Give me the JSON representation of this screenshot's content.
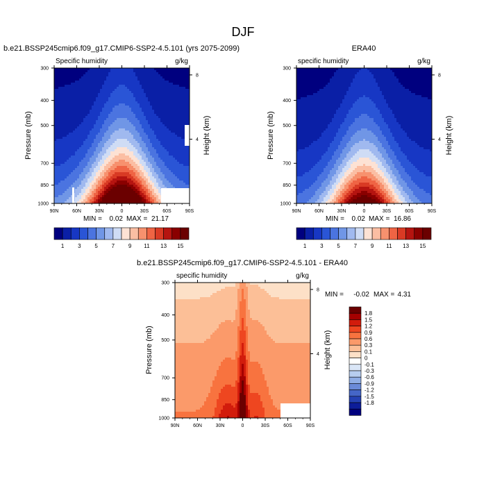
{
  "figure": {
    "title": "DJF"
  },
  "chart_data": [
    {
      "type": "heatmap",
      "title": "b.e21.BSSP245cmip6.f09_g17.CMIP6-SSP2-4.5.101 (yrs 2075-2099)",
      "subtitle_left": "Specific humidity",
      "subtitle_right": "g/kg",
      "xlabel": "",
      "ylabel": "Pressure (mb)",
      "ylabel_right": "Height (km)",
      "x_ticks": [
        "90N",
        "60N",
        "30N",
        "0",
        "30S",
        "60S",
        "90S"
      ],
      "y_ticks": [
        300,
        400,
        500,
        700,
        850,
        1000
      ],
      "y_right_ticks": [
        8,
        4
      ],
      "xlim": [
        90,
        -90
      ],
      "ylim": [
        1000,
        300
      ],
      "stats": {
        "min_label": "MIN =",
        "min": "0.02",
        "max_label": "MAX =",
        "max": "21.17"
      },
      "colorbar_labels": [
        "1",
        "3",
        "5",
        "7",
        "9",
        "11",
        "13",
        "15"
      ],
      "levels": [
        1,
        2,
        3,
        4,
        5,
        6,
        7,
        8,
        9,
        10,
        11,
        12,
        13,
        14,
        15
      ]
    },
    {
      "type": "heatmap",
      "title": "ERA40",
      "subtitle_left": "specific humidity",
      "subtitle_right": "g/kg",
      "xlabel": "",
      "ylabel": "Pressure (mb)",
      "ylabel_right": "Height (km)",
      "x_ticks": [
        "90N",
        "60N",
        "30N",
        "0",
        "30S",
        "60S",
        "90S"
      ],
      "y_ticks": [
        300,
        400,
        500,
        700,
        850,
        1000
      ],
      "y_right_ticks": [
        8,
        4
      ],
      "xlim": [
        90,
        -90
      ],
      "ylim": [
        1000,
        300
      ],
      "stats": {
        "min_label": "MIN =",
        "min": "0.02",
        "max_label": "MAX =",
        "max": "16.86"
      },
      "colorbar_labels": [
        "1",
        "3",
        "5",
        "7",
        "9",
        "11",
        "13",
        "15"
      ],
      "levels": [
        1,
        2,
        3,
        4,
        5,
        6,
        7,
        8,
        9,
        10,
        11,
        12,
        13,
        14,
        15
      ]
    },
    {
      "type": "heatmap",
      "title": "b.e21.BSSP245cmip6.f09_g17.CMIP6-SSP2-4.5.101 - ERA40",
      "subtitle_left": "specific humidity",
      "subtitle_right": "g/kg",
      "xlabel": "",
      "ylabel": "Pressure (mb)",
      "ylabel_right": "Height (km)",
      "x_ticks": [
        "90N",
        "60N",
        "30N",
        "0",
        "30S",
        "60S",
        "90S"
      ],
      "y_ticks": [
        300,
        400,
        500,
        700,
        850,
        1000
      ],
      "y_right_ticks": [
        8,
        4
      ],
      "xlim": [
        90,
        -90
      ],
      "ylim": [
        1000,
        300
      ],
      "stats": {
        "min_label": "MIN =",
        "min": "-0.02",
        "max_label": "MAX =",
        "max": "4.31"
      },
      "colorbar_labels": [
        "1.8",
        "1.5",
        "1.2",
        "0.9",
        "0.6",
        "0.3",
        "0.1",
        "0",
        "-0.1",
        "-0.3",
        "-0.6",
        "-0.9",
        "-1.2",
        "-1.5",
        "-1.8"
      ]
    }
  ],
  "colors": {
    "main_scale": [
      "#00007f",
      "#0a1fa6",
      "#1737c4",
      "#2a55d6",
      "#4b74e0",
      "#7096e6",
      "#a0b9ef",
      "#cfdcf5",
      "#fde2d4",
      "#fbbea3",
      "#f7916e",
      "#ef6444",
      "#d93a24",
      "#b51410",
      "#8a0000",
      "#6b0000"
    ],
    "diff_scale": [
      "#6b0000",
      "#a50000",
      "#d21c0c",
      "#ee4620",
      "#f8733f",
      "#fb9a6a",
      "#fcbf97",
      "#fde0c7",
      "#ffffff",
      "#dae6f7",
      "#b7cdef",
      "#8fade5",
      "#6a8ad8",
      "#4566c7",
      "#2542b3",
      "#0d1d99",
      "#00007f"
    ]
  }
}
